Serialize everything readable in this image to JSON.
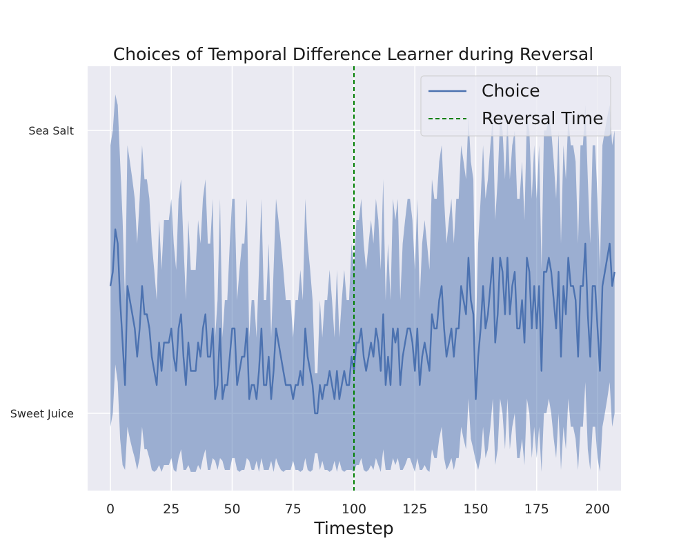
{
  "chart_data": {
    "type": "line",
    "title": "Choices of Temporal Difference Learner during Reversal",
    "xlabel": "Timestep",
    "ylabel": "",
    "xlim": [
      -9,
      210
    ],
    "ylim": [
      -0.27,
      1.18
    ],
    "x_ticks": [
      0,
      25,
      50,
      75,
      100,
      125,
      150,
      175,
      200
    ],
    "y_ticks": [
      {
        "value": 0,
        "label": "Sweet Juice"
      },
      {
        "value": 1,
        "label": "Sea Salt"
      }
    ],
    "grid": true,
    "legend_position": "upper right",
    "band": "±1 standard deviation",
    "reversal_time": 100,
    "series": [
      {
        "name": "Choice",
        "color": "#4c72b0",
        "x_start": 0,
        "x_step": 1,
        "values": [
          0.45,
          0.5,
          0.65,
          0.6,
          0.4,
          0.25,
          0.1,
          0.45,
          0.4,
          0.35,
          0.3,
          0.2,
          0.3,
          0.45,
          0.35,
          0.35,
          0.3,
          0.2,
          0.15,
          0.1,
          0.25,
          0.15,
          0.25,
          0.25,
          0.25,
          0.3,
          0.2,
          0.15,
          0.3,
          0.35,
          0.2,
          0.1,
          0.25,
          0.15,
          0.15,
          0.15,
          0.25,
          0.2,
          0.3,
          0.35,
          0.2,
          0.2,
          0.3,
          0.05,
          0.1,
          0.3,
          0.05,
          0.1,
          0.1,
          0.2,
          0.3,
          0.3,
          0.1,
          0.15,
          0.2,
          0.2,
          0.3,
          0.05,
          0.1,
          0.1,
          0.05,
          0.15,
          0.3,
          0.1,
          0.1,
          0.2,
          0.05,
          0.15,
          0.3,
          0.25,
          0.2,
          0.15,
          0.1,
          0.1,
          0.1,
          0.05,
          0.1,
          0.1,
          0.15,
          0.1,
          0.3,
          0.2,
          0.15,
          0.1,
          0.0,
          0.0,
          0.1,
          0.05,
          0.1,
          0.1,
          0.15,
          0.1,
          0.05,
          0.15,
          0.05,
          0.1,
          0.15,
          0.1,
          0.1,
          0.2,
          0.15,
          0.25,
          0.25,
          0.3,
          0.2,
          0.15,
          0.2,
          0.25,
          0.2,
          0.3,
          0.25,
          0.15,
          0.35,
          0.1,
          0.2,
          0.1,
          0.3,
          0.25,
          0.3,
          0.1,
          0.2,
          0.25,
          0.3,
          0.3,
          0.25,
          0.15,
          0.3,
          0.1,
          0.2,
          0.25,
          0.2,
          0.15,
          0.35,
          0.3,
          0.3,
          0.4,
          0.45,
          0.3,
          0.2,
          0.25,
          0.3,
          0.2,
          0.3,
          0.3,
          0.45,
          0.4,
          0.35,
          0.55,
          0.4,
          0.35,
          0.05,
          0.2,
          0.3,
          0.45,
          0.3,
          0.35,
          0.45,
          0.55,
          0.25,
          0.35,
          0.55,
          0.5,
          0.35,
          0.55,
          0.35,
          0.45,
          0.5,
          0.3,
          0.3,
          0.4,
          0.25,
          0.55,
          0.5,
          0.3,
          0.45,
          0.3,
          0.45,
          0.15,
          0.5,
          0.5,
          0.55,
          0.5,
          0.4,
          0.3,
          0.5,
          0.2,
          0.45,
          0.35,
          0.55,
          0.45,
          0.45,
          0.4,
          0.2,
          0.45,
          0.45,
          0.6,
          0.35,
          0.2,
          0.45,
          0.45,
          0.3,
          0.15,
          0.45,
          0.5,
          0.55,
          0.6,
          0.45,
          0.5
        ]
      },
      {
        "name": "Reversal Time",
        "color": "#008000",
        "style": "dashed"
      }
    ]
  }
}
